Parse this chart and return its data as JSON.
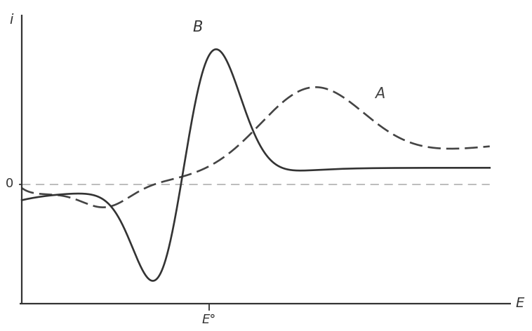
{
  "title": "",
  "xlabel_end": "E",
  "xlabel_mid": "E°",
  "ylabel": "i",
  "zero_label": "0",
  "label_A": "A",
  "label_B": "B",
  "background_color": "#ffffff",
  "axis_color": "#333333",
  "curve_B_color": "#333333",
  "curve_A_color": "#444444",
  "baseline_color": "#aaaaaa",
  "figsize": [
    7.58,
    4.72
  ],
  "dpi": 100
}
